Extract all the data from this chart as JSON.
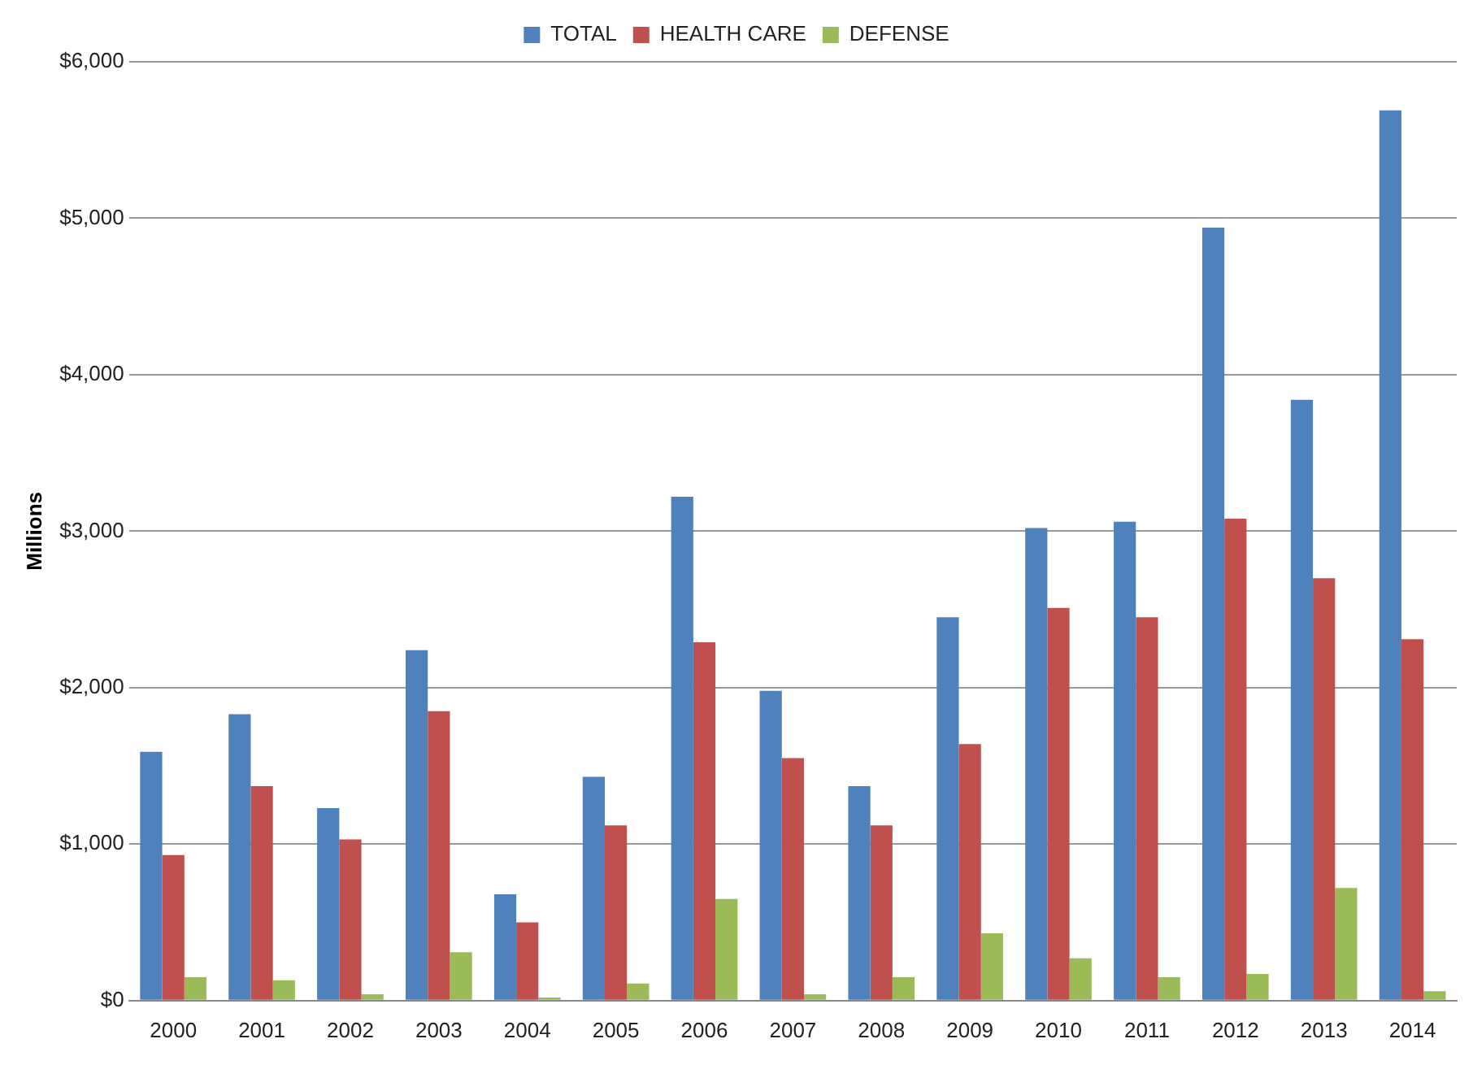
{
  "chart_data": {
    "type": "bar",
    "ylabel": "Millions",
    "categories": [
      "2000",
      "2001",
      "2002",
      "2003",
      "2004",
      "2005",
      "2006",
      "2007",
      "2008",
      "2009",
      "2010",
      "2011",
      "2012",
      "2013",
      "2014"
    ],
    "series": [
      {
        "name": "TOTAL",
        "color": "#4f81bd",
        "values": [
          1590,
          1830,
          1230,
          2240,
          680,
          1430,
          3220,
          1980,
          1370,
          2450,
          3020,
          3060,
          4940,
          3840,
          5690
        ]
      },
      {
        "name": "HEALTH CARE",
        "color": "#c0504d",
        "values": [
          930,
          1370,
          1030,
          1850,
          500,
          1120,
          2290,
          1550,
          1120,
          1640,
          2510,
          2450,
          3080,
          2700,
          2310
        ]
      },
      {
        "name": "DEFENSE",
        "color": "#9bbb59",
        "values": [
          150,
          130,
          40,
          310,
          20,
          110,
          650,
          40,
          150,
          430,
          270,
          150,
          170,
          720,
          60
        ]
      }
    ],
    "ylim": [
      0,
      6000
    ],
    "yticks": [
      {
        "value": 0,
        "label": "$0"
      },
      {
        "value": 1000,
        "label": "$1,000"
      },
      {
        "value": 2000,
        "label": "$2,000"
      },
      {
        "value": 3000,
        "label": "$3,000"
      },
      {
        "value": 4000,
        "label": "$4,000"
      },
      {
        "value": 5000,
        "label": "$5,000"
      },
      {
        "value": 6000,
        "label": "$6,000"
      }
    ],
    "grid": "y",
    "legend": "top"
  }
}
